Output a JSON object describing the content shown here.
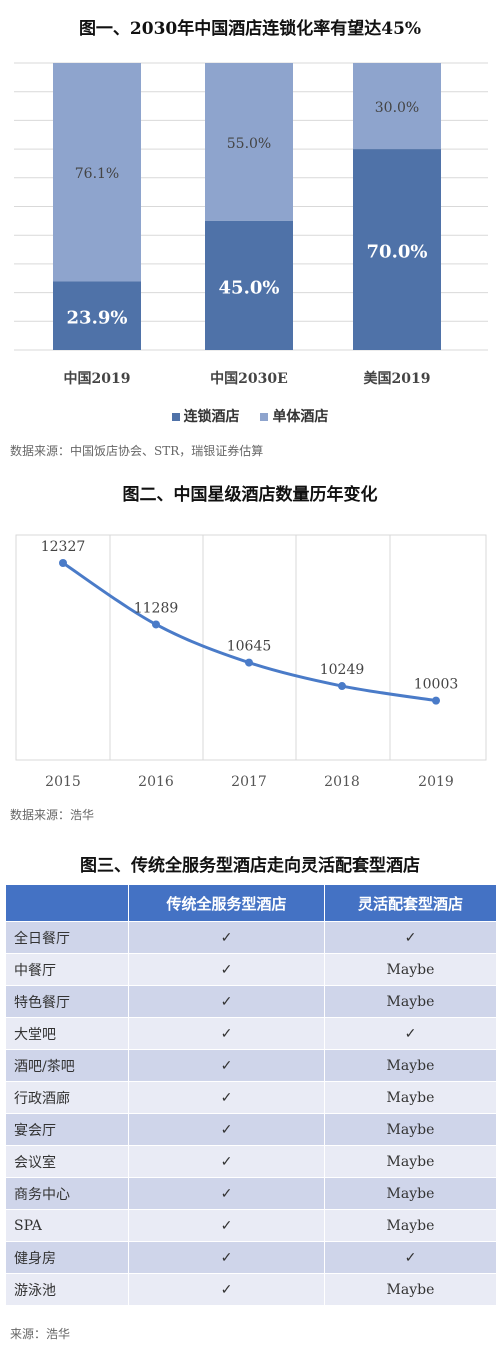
{
  "figure1": {
    "title": "图一、2030年中国酒店连锁化率有望达45%",
    "source": "数据来源：中国饭店协会、STR，瑞银证券估算",
    "legend": {
      "chain": "连锁酒店",
      "single": "单体酒店"
    },
    "colors": {
      "chain": "#4f72a8",
      "single": "#8ea4cd"
    }
  },
  "figure2": {
    "title": "图二、中国星级酒店数量历年变化",
    "source": "数据来源：浩华",
    "color": "#4a7bc8"
  },
  "figure3": {
    "title": "图三、传统全服务型酒店走向灵活配套型酒店",
    "source": "来源：浩华",
    "headers": [
      "",
      "传统全服务型酒店",
      "灵活配套型酒店"
    ],
    "rows": [
      [
        "全日餐厅",
        "✓",
        "✓"
      ],
      [
        "中餐厅",
        "✓",
        "Maybe"
      ],
      [
        "特色餐厅",
        "✓",
        "Maybe"
      ],
      [
        "大堂吧",
        "✓",
        "✓"
      ],
      [
        "酒吧/茶吧",
        "✓",
        "Maybe"
      ],
      [
        "行政酒廊",
        "✓",
        "Maybe"
      ],
      [
        "宴会厅",
        "✓",
        "Maybe"
      ],
      [
        "会议室",
        "✓",
        "Maybe"
      ],
      [
        "商务中心",
        "✓",
        "Maybe"
      ],
      [
        "SPA",
        "✓",
        "Maybe"
      ],
      [
        "健身房",
        "✓",
        "✓"
      ],
      [
        "游泳池",
        "✓",
        "Maybe"
      ]
    ]
  },
  "chart_data": [
    {
      "type": "bar",
      "stacked": true,
      "title": "图一、2030年中国酒店连锁化率有望达45%",
      "categories": [
        "中国2019",
        "中国2030E",
        "美国2019"
      ],
      "series": [
        {
          "name": "连锁酒店",
          "values": [
            23.9,
            45.0,
            70.0
          ],
          "labels": [
            "23.9%",
            "45.0%",
            "70.0%"
          ]
        },
        {
          "name": "单体酒店",
          "values": [
            76.1,
            55.0,
            30.0
          ],
          "labels": [
            "76.1%",
            "55.0%",
            "30.0%"
          ]
        }
      ],
      "ylim": [
        0,
        100
      ],
      "grid": true,
      "legend": "bottom"
    },
    {
      "type": "line",
      "title": "图二、中国星级酒店数量历年变化",
      "x": [
        "2015",
        "2016",
        "2017",
        "2018",
        "2019"
      ],
      "values": [
        12327,
        11289,
        10645,
        10249,
        10003
      ],
      "ylim": [
        9000,
        12800
      ],
      "grid": true
    }
  ]
}
